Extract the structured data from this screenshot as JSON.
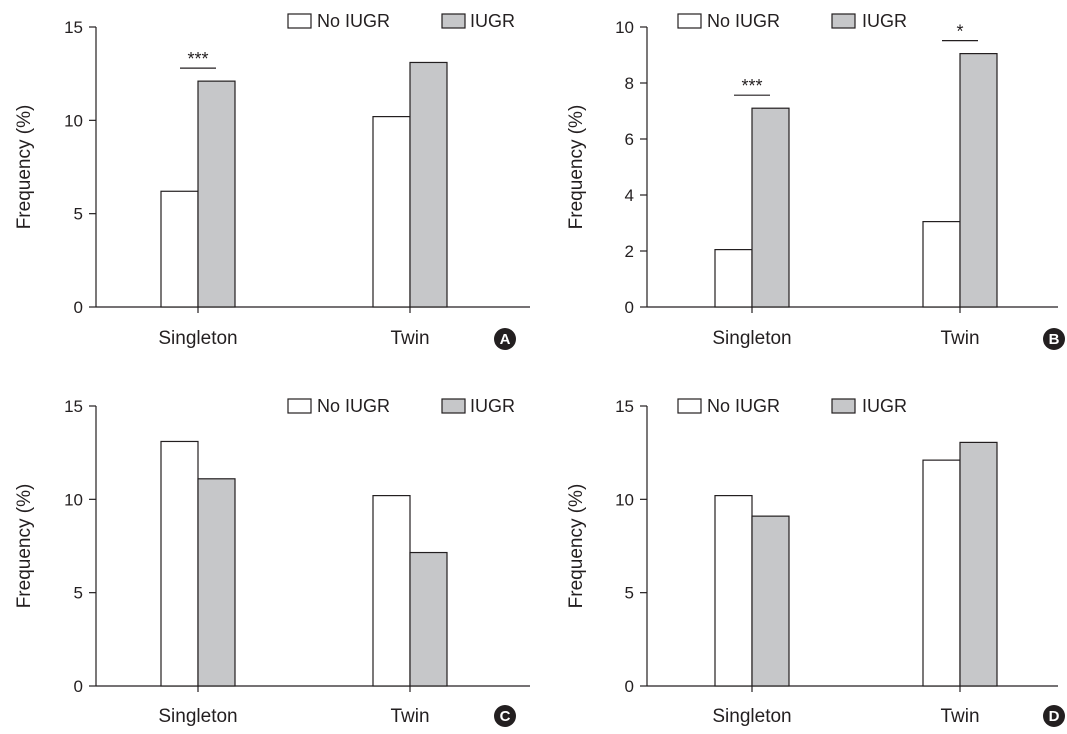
{
  "colors": {
    "no_iugr_fill": "#ffffff",
    "iugr_fill": "#c6c7c9",
    "stroke": "#231f20",
    "badge": "#231f20"
  },
  "chart_data": [
    {
      "panel": "A",
      "type": "bar",
      "categories": [
        "Singleton",
        "Twin"
      ],
      "series": [
        {
          "name": "No IUGR",
          "values": [
            6.2,
            10.2
          ]
        },
        {
          "name": "IUGR",
          "values": [
            12.1,
            13.1
          ]
        }
      ],
      "ylabel": "Frequency (%)",
      "ylim": [
        0,
        15
      ],
      "yticks": [
        0,
        5,
        10,
        15
      ],
      "legend": "top-right",
      "grid": false,
      "annotations": [
        {
          "category": "Singleton",
          "text": "***"
        }
      ]
    },
    {
      "panel": "B",
      "type": "bar",
      "categories": [
        "Singleton",
        "Twin"
      ],
      "series": [
        {
          "name": "No IUGR",
          "values": [
            2.05,
            3.05
          ]
        },
        {
          "name": "IUGR",
          "values": [
            7.1,
            9.05
          ]
        }
      ],
      "ylabel": "Frequency (%)",
      "ylim": [
        0,
        10
      ],
      "yticks": [
        0,
        2,
        4,
        6,
        8,
        10
      ],
      "legend": "top-right",
      "grid": false,
      "annotations": [
        {
          "category": "Singleton",
          "text": "***"
        },
        {
          "category": "Twin",
          "text": "*"
        }
      ]
    },
    {
      "panel": "C",
      "type": "bar",
      "categories": [
        "Singleton",
        "Twin"
      ],
      "series": [
        {
          "name": "No IUGR",
          "values": [
            13.1,
            10.2
          ]
        },
        {
          "name": "IUGR",
          "values": [
            11.1,
            7.15
          ]
        }
      ],
      "ylabel": "Frequency (%)",
      "ylim": [
        0,
        15
      ],
      "yticks": [
        0,
        5,
        10,
        15
      ],
      "legend": "top-right",
      "grid": false,
      "annotations": []
    },
    {
      "panel": "D",
      "type": "bar",
      "categories": [
        "Singleton",
        "Twin"
      ],
      "series": [
        {
          "name": "No IUGR",
          "values": [
            10.2,
            12.1
          ]
        },
        {
          "name": "IUGR",
          "values": [
            9.1,
            13.05
          ]
        }
      ],
      "ylabel": "Frequency (%)",
      "ylim": [
        0,
        15
      ],
      "yticks": [
        0,
        5,
        10,
        15
      ],
      "legend": "top-right",
      "grid": false,
      "annotations": []
    }
  ]
}
